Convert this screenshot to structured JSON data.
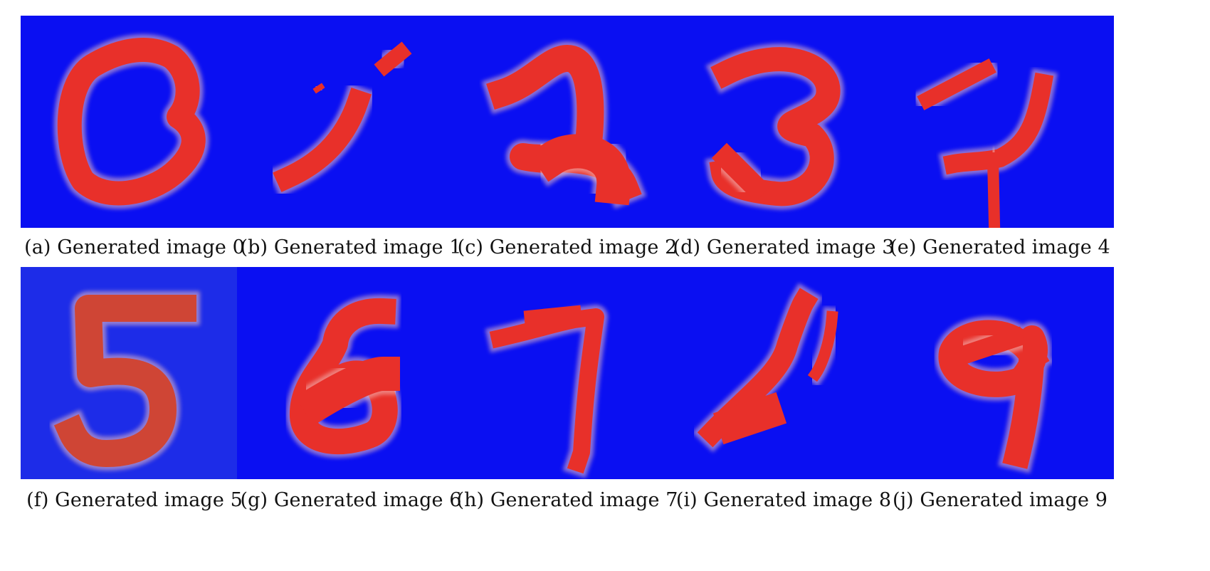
{
  "colors": {
    "background": "#0a0ff2",
    "stroke": "#e8302a",
    "stroke_edge": "#f3c2c2",
    "background_panel5": "#1d2ce8",
    "stroke_panel5": "#cf4535"
  },
  "panels": [
    {
      "caption": "(a) Generated image 0",
      "digit_shape": "0"
    },
    {
      "caption": "(b) Generated image 1",
      "digit_shape": "1"
    },
    {
      "caption": "(c) Generated image 2",
      "digit_shape": "2"
    },
    {
      "caption": "(d) Generated image 3",
      "digit_shape": "3"
    },
    {
      "caption": "(e) Generated image 4",
      "digit_shape": "4"
    },
    {
      "caption": "(f) Generated image 5",
      "digit_shape": "5"
    },
    {
      "caption": "(g) Generated image 6",
      "digit_shape": "6"
    },
    {
      "caption": "(h) Generated image 7",
      "digit_shape": "7"
    },
    {
      "caption": "(i) Generated image 8",
      "digit_shape": "8"
    },
    {
      "caption": "(j) Generated image 9",
      "digit_shape": "9"
    }
  ]
}
